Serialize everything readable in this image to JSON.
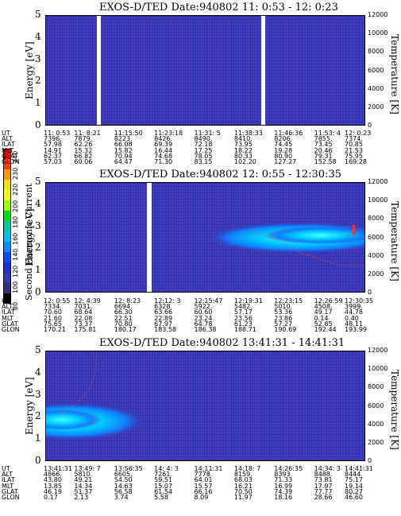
{
  "panels": [
    {
      "title": "EXOS-D/TED   Date:940802  11: 0:53 - 12: 0:23",
      "ylabel": "Energy [eV]",
      "rlabel": "Temperature [K]",
      "yticks": [
        "5",
        "4",
        "3",
        "2",
        "1",
        "0"
      ],
      "rticks": [
        "12000",
        "10000",
        "8000",
        "6000",
        "4000",
        "2000",
        "0"
      ],
      "row_labels": [
        "UT",
        "ALT",
        "ILAT",
        "MLT",
        "GLAT",
        "GLON"
      ],
      "columns": [
        [
          "11: 0:53",
          "7396.",
          "57.98",
          "14.91",
          "62.37",
          "57.03"
        ],
        [
          "11: 8:21",
          "7879.",
          "62.26",
          "15.32",
          "66.82",
          "60.06"
        ],
        [
          "11:15:50",
          "8223.",
          "66.08",
          "15.82",
          "70.94",
          "64.47"
        ],
        [
          "11:23:18",
          "8426.",
          "69.39",
          "16.44",
          "74.68",
          "71.30"
        ],
        [
          "11:31: 5",
          "8490.",
          "72.18",
          "17.25",
          "78.05",
          "83.15"
        ],
        [
          "11:38:33",
          "8410.",
          "73.95",
          "18.22",
          "80.33",
          "102.20"
        ],
        [
          "11:46:36",
          "8206.",
          "74.45",
          "19.28",
          "80.90",
          "127.27"
        ],
        [
          "11:53: 4",
          "7855.",
          "73.45",
          "20.46",
          "79.31",
          "152.58"
        ],
        [
          "12: 0:23",
          "7374.",
          "70.85",
          "21.53",
          "75.95",
          "169.28"
        ]
      ]
    },
    {
      "title": "EXOS-D/TED   Date:940802  12: 0:55 - 12:30:35",
      "ylabel": "Energy [eV]",
      "rlabel": "Temperature [K]",
      "yticks": [
        "5",
        "4",
        "3",
        "2",
        "1",
        "0"
      ],
      "rticks": [
        "12000",
        "10000",
        "8000",
        "6000",
        "4000",
        "2000",
        "0"
      ],
      "row_labels": [
        "UT",
        "ALT",
        "ILAT",
        "MLT",
        "GLAT",
        "GLON"
      ],
      "columns": [
        [
          "12: 0:55",
          "7334.",
          "70.60",
          "21.60",
          "75.65",
          "170.21"
        ],
        [
          "12: 4:39",
          "7031.",
          "68.64",
          "22.08",
          "73.37",
          "175.81"
        ],
        [
          "12: 8:23",
          "6694.",
          "66.30",
          "22.51",
          "70.80",
          "180.17"
        ],
        [
          "12:12: 3",
          "6328.",
          "63.66",
          "22.89",
          "67.97",
          "183.58"
        ],
        [
          "12:15:47",
          "5922.",
          "60.60",
          "23.24",
          "64.78",
          "186.38"
        ],
        [
          "12:19:31",
          "5482.",
          "57.17",
          "23.56",
          "61.23",
          "188.71"
        ],
        [
          "12:23:15",
          "5010.",
          "53.36",
          "23.86",
          "57.27",
          "190.69"
        ],
        [
          "12:26:59",
          "4508.",
          "49.17",
          "0.14",
          "52.85",
          "192.44"
        ],
        [
          "12:30:35",
          "3999.",
          "44.78",
          "0.40",
          "48.11",
          "193.99"
        ]
      ]
    },
    {
      "title": "EXOS-D/TED   Date:940802  13:41:31 - 14:41:31",
      "ylabel": "Energy [eV]",
      "rlabel": "Temperature [K]",
      "yticks": [
        "5",
        "4",
        "3",
        "2",
        "1",
        "0"
      ],
      "rticks": [
        "12000",
        "10000",
        "8000",
        "6000",
        "4000",
        "2000",
        "0"
      ],
      "row_labels": [
        "UT",
        "ALT",
        "ILAT",
        "MLT",
        "GLAT",
        "GLON"
      ],
      "columns": [
        [
          "13:41:31",
          "4866.",
          "43.80",
          "13.85",
          "46.19",
          "0.17"
        ],
        [
          "13:49: 7",
          "5810.",
          "49.21",
          "14.34",
          "51.37",
          "2.13"
        ],
        [
          "13:56:35",
          "6605.",
          "54.50",
          "14.63",
          "56.58",
          "3.74"
        ],
        [
          "14: 4: 3",
          "7261.",
          "59.51",
          "15.07",
          "61.54",
          "5.58"
        ],
        [
          "14:11:31",
          "7778.",
          "64.01",
          "15.57",
          "66.16",
          "8.09"
        ],
        [
          "14:18: 7",
          "8159.",
          "68.03",
          "16.21",
          "70.50",
          "11.97"
        ],
        [
          "14:26:35",
          "8393.",
          "71.33",
          "16.99",
          "74.39",
          "18.16"
        ],
        [
          "14:34: 3",
          "8488.",
          "73.81",
          "17.97",
          "77.77",
          "28.66"
        ],
        [
          "14:41:31",
          "8444.",
          "75.17",
          "19.14",
          "80.27",
          "46.60"
        ]
      ]
    }
  ],
  "colorbar": {
    "label": "Second Harmonic Current",
    "ticks": [
      "240",
      "230",
      "220",
      "200",
      "180",
      "160",
      "140",
      "120",
      "100",
      "80"
    ],
    "colors": [
      "#e8000a",
      "#ff4000",
      "#ff9a00",
      "#ffe000",
      "#f2ff00",
      "#a0ff00",
      "#00e000",
      "#00c8a0",
      "#00c0ff",
      "#0090ff",
      "#0050ff",
      "#2030d0",
      "#3a37b4",
      "#303080",
      "#000000"
    ]
  },
  "chart_data": [
    {
      "type": "heatmap",
      "title": "EXOS-D/TED   Date:940802  11: 0:53 - 12: 0:23",
      "ylabel": "Energy [eV]",
      "y2label": "Temperature [K]",
      "ylim": [
        0,
        5
      ],
      "y2lim": [
        0,
        12000
      ],
      "x": [
        "11: 0:53",
        "11: 8:21",
        "11:15:50",
        "11:23:18",
        "11:31: 5",
        "11:38:33",
        "11:46:36",
        "11:53: 4",
        "12: 0:23"
      ],
      "note": "uniform low intensity (~100) background with data gaps"
    },
    {
      "type": "heatmap",
      "title": "EXOS-D/TED   Date:940802  12: 0:55 - 12:30:35",
      "ylabel": "Energy [eV]",
      "y2label": "Temperature [K]",
      "ylim": [
        0,
        5
      ],
      "y2lim": [
        0,
        12000
      ],
      "x": [
        "12: 0:55",
        "12: 4:39",
        "12: 8:23",
        "12:12: 3",
        "12:15:47",
        "12:19:31",
        "12:23:15",
        "12:26:59",
        "12:30:35"
      ],
      "features": [
        {
          "x_range": [
            "12:19:31",
            "12:30:35"
          ],
          "energy_range": [
            2.1,
            3.1
          ],
          "level": 150
        }
      ]
    },
    {
      "type": "heatmap",
      "title": "EXOS-D/TED   Date:940802  13:41:31 - 14:41:31",
      "ylabel": "Energy [eV]",
      "y2label": "Temperature [K]",
      "ylim": [
        0,
        5
      ],
      "y2lim": [
        0,
        12000
      ],
      "x": [
        "13:41:31",
        "13:49: 7",
        "13:56:35",
        "14: 4: 3",
        "14:11:31",
        "14:18: 7",
        "14:26:35",
        "14:34: 3",
        "14:41:31"
      ],
      "features": [
        {
          "x_range": [
            "13:41:31",
            "13:56:35"
          ],
          "energy_range": [
            1.2,
            3.0
          ],
          "level": 140
        }
      ]
    }
  ]
}
